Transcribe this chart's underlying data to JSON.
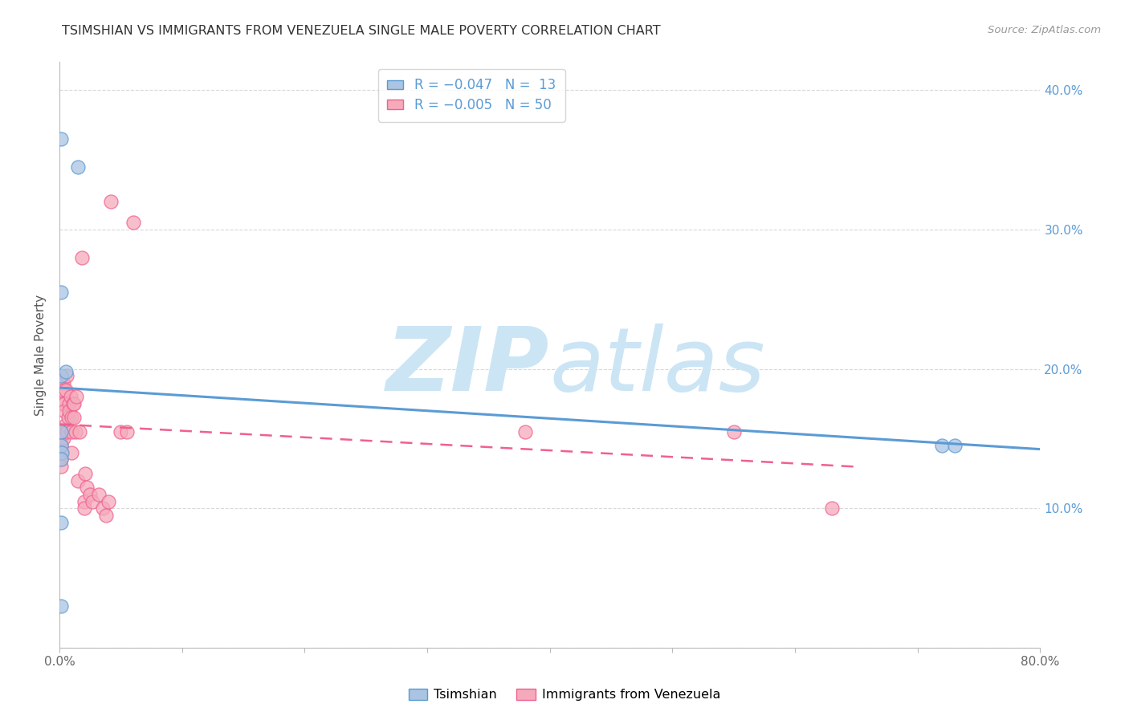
{
  "title": "TSIMSHIAN VS IMMIGRANTS FROM VENEZUELA SINGLE MALE POVERTY CORRELATION CHART",
  "source": "Source: ZipAtlas.com",
  "ylabel": "Single Male Poverty",
  "legend_label1": "R = −0.047   N =  13",
  "legend_label2": "R = −0.005   N = 50",
  "tsimshian_x": [
    0.001,
    0.015,
    0.001,
    0.001,
    0.005,
    0.001,
    0.001,
    0.002,
    0.001,
    0.001,
    0.72,
    0.73,
    0.001
  ],
  "tsimshian_y": [
    0.365,
    0.345,
    0.255,
    0.195,
    0.198,
    0.155,
    0.145,
    0.14,
    0.135,
    0.09,
    0.145,
    0.145,
    0.03
  ],
  "venezuela_x": [
    0.001,
    0.001,
    0.001,
    0.001,
    0.001,
    0.001,
    0.002,
    0.002,
    0.002,
    0.003,
    0.003,
    0.003,
    0.004,
    0.004,
    0.005,
    0.005,
    0.006,
    0.006,
    0.007,
    0.008,
    0.008,
    0.009,
    0.01,
    0.01,
    0.01,
    0.011,
    0.012,
    0.012,
    0.013,
    0.014,
    0.015,
    0.016,
    0.018,
    0.02,
    0.02,
    0.021,
    0.022,
    0.025,
    0.027,
    0.032,
    0.035,
    0.038,
    0.04,
    0.042,
    0.05,
    0.055,
    0.06,
    0.38,
    0.55,
    0.63
  ],
  "venezuela_y": [
    0.155,
    0.15,
    0.145,
    0.14,
    0.135,
    0.13,
    0.19,
    0.175,
    0.155,
    0.19,
    0.185,
    0.15,
    0.175,
    0.17,
    0.185,
    0.16,
    0.155,
    0.195,
    0.165,
    0.175,
    0.17,
    0.18,
    0.165,
    0.155,
    0.14,
    0.175,
    0.175,
    0.165,
    0.155,
    0.18,
    0.12,
    0.155,
    0.28,
    0.105,
    0.1,
    0.125,
    0.115,
    0.11,
    0.105,
    0.11,
    0.1,
    0.095,
    0.105,
    0.32,
    0.155,
    0.155,
    0.305,
    0.155,
    0.155,
    0.1
  ],
  "blue_color": "#aac4e2",
  "pink_color": "#f5aabb",
  "blue_line_color": "#5b9bd5",
  "pink_line_color": "#f06090",
  "background_color": "#ffffff",
  "grid_color": "#d8d8d8",
  "title_color": "#333333",
  "source_color": "#999999",
  "watermark_zip": "ZIP",
  "watermark_atlas": "atlas",
  "watermark_color": "#cce5f5",
  "xlim": [
    0.0,
    0.8
  ],
  "ylim": [
    0.0,
    0.42
  ],
  "yticks": [
    0.0,
    0.1,
    0.2,
    0.3,
    0.4
  ],
  "ytick_labels_right": [
    "",
    "10.0%",
    "20.0%",
    "30.0%",
    "40.0%"
  ],
  "xtick_positions": [
    0.0,
    0.1,
    0.2,
    0.3,
    0.4,
    0.5,
    0.6,
    0.7,
    0.8
  ],
  "xtick_labels": [
    "0.0%",
    "",
    "",
    "",
    "",
    "",
    "",
    "",
    "80.0%"
  ],
  "figsize": [
    14.06,
    8.92
  ],
  "dpi": 100
}
